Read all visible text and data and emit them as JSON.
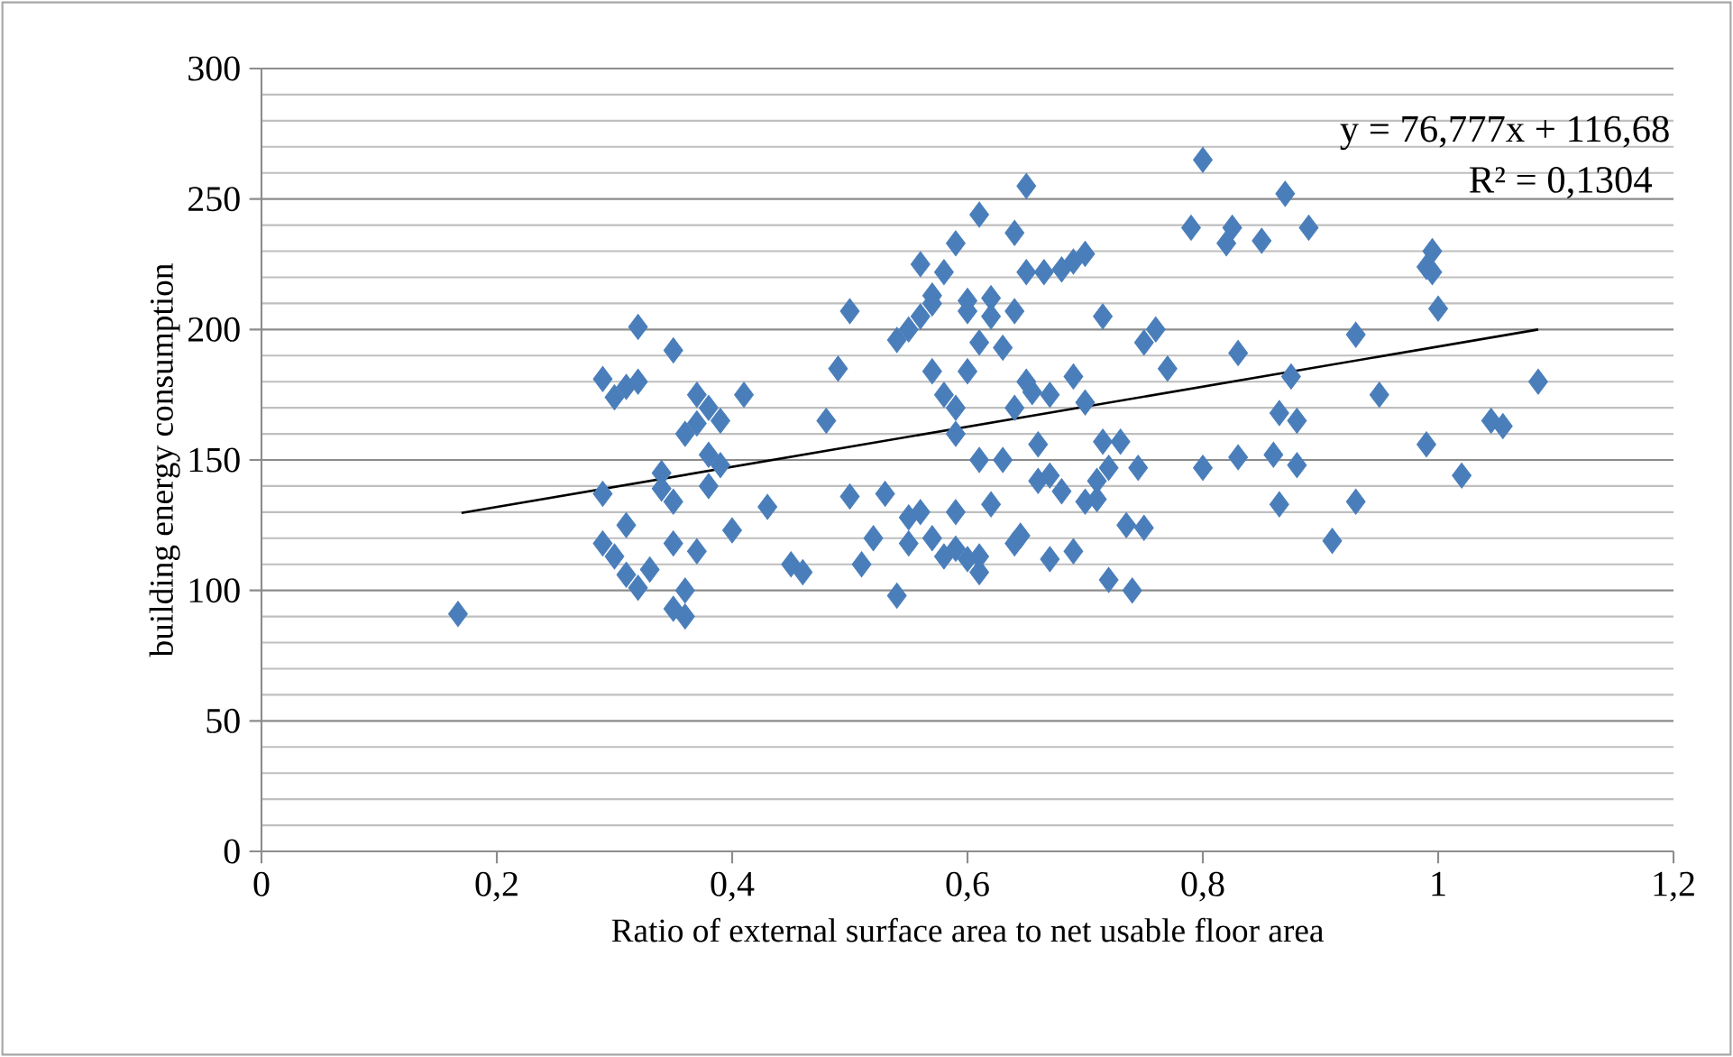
{
  "chart_data": {
    "type": "scatter",
    "xlabel": "Ratio of external surface area to net usable floor area",
    "ylabel": "building energy consumption",
    "annotations": [
      "y = 76,777x + 116,68",
      "R² = 0,1304"
    ],
    "xlim": [
      0,
      1.2
    ],
    "ylim": [
      0,
      300
    ],
    "xticks": [
      0,
      {
        "value": 0.2,
        "label": "0,2"
      },
      {
        "value": 0.4,
        "label": "0,4"
      },
      {
        "value": 0.6,
        "label": "0,6"
      },
      {
        "value": 0.8,
        "label": "0,8"
      },
      1,
      {
        "value": 1.2,
        "label": "1,2"
      }
    ],
    "yticks": [
      0,
      50,
      100,
      150,
      200,
      250,
      300
    ],
    "grid": "y",
    "series": [
      {
        "marker": "diamond",
        "color": "#4a7ebb",
        "x": [
          0.167,
          0.29,
          0.29,
          0.29,
          0.3,
          0.3,
          0.31,
          0.31,
          0.31,
          0.32,
          0.32,
          0.32,
          0.33,
          0.34,
          0.34,
          0.35,
          0.35,
          0.35,
          0.35,
          0.36,
          0.36,
          0.36,
          0.37,
          0.37,
          0.37,
          0.38,
          0.38,
          0.38,
          0.39,
          0.39,
          0.4,
          0.41,
          0.43,
          0.45,
          0.46,
          0.48,
          0.49,
          0.5,
          0.5,
          0.51,
          0.52,
          0.53,
          0.54,
          0.54,
          0.55,
          0.55,
          0.55,
          0.56,
          0.56,
          0.56,
          0.57,
          0.57,
          0.57,
          0.57,
          0.58,
          0.58,
          0.58,
          0.59,
          0.59,
          0.59,
          0.59,
          0.59,
          0.6,
          0.6,
          0.6,
          0.6,
          0.61,
          0.61,
          0.61,
          0.61,
          0.61,
          0.62,
          0.62,
          0.62,
          0.63,
          0.63,
          0.64,
          0.64,
          0.64,
          0.64,
          0.645,
          0.65,
          0.65,
          0.65,
          0.655,
          0.66,
          0.66,
          0.665,
          0.67,
          0.67,
          0.67,
          0.68,
          0.68,
          0.69,
          0.69,
          0.69,
          0.7,
          0.7,
          0.7,
          0.71,
          0.71,
          0.715,
          0.715,
          0.72,
          0.72,
          0.73,
          0.735,
          0.74,
          0.745,
          0.75,
          0.75,
          0.76,
          0.77,
          0.79,
          0.8,
          0.8,
          0.82,
          0.825,
          0.83,
          0.83,
          0.85,
          0.86,
          0.865,
          0.865,
          0.87,
          0.875,
          0.88,
          0.88,
          0.89,
          0.91,
          0.93,
          0.93,
          0.95,
          0.99,
          0.99,
          0.995,
          0.995,
          1.0,
          1.02,
          1.045,
          1.055,
          1.085
        ],
        "values": [
          91,
          137,
          118,
          181,
          113,
          174,
          178,
          125,
          106,
          101,
          180,
          201,
          108,
          139,
          145,
          93,
          118,
          134,
          192,
          90,
          160,
          100,
          175,
          115,
          164,
          140,
          152,
          170,
          165,
          148,
          123,
          175,
          132,
          110,
          107,
          165,
          185,
          136,
          207,
          110,
          120,
          137,
          98,
          196,
          118,
          128,
          200,
          225,
          205,
          130,
          210,
          184,
          120,
          213,
          175,
          113,
          222,
          170,
          160,
          116,
          130,
          233,
          207,
          211,
          184,
          112,
          195,
          244,
          150,
          107,
          113,
          212,
          205,
          133,
          193,
          150,
          237,
          207,
          170,
          118,
          121,
          255,
          222,
          180,
          176,
          156,
          142,
          222,
          175,
          144,
          112,
          138,
          223,
          226,
          182,
          115,
          229,
          172,
          134,
          142,
          135,
          157,
          205,
          147,
          104,
          157,
          125,
          100,
          147,
          124,
          195,
          200,
          185,
          239,
          147,
          265,
          233,
          239,
          151,
          191,
          234,
          152,
          168,
          133,
          252,
          182,
          148,
          165,
          239,
          119,
          134,
          198,
          175,
          156,
          224,
          230,
          222,
          208,
          144,
          165,
          163,
          180
        ]
      },
      {
        "type": "line",
        "color": "#000000",
        "marker": "none",
        "line_style": "solid",
        "x": [
          0.17,
          1.085
        ],
        "values": [
          129.7,
          200.0
        ]
      }
    ]
  }
}
